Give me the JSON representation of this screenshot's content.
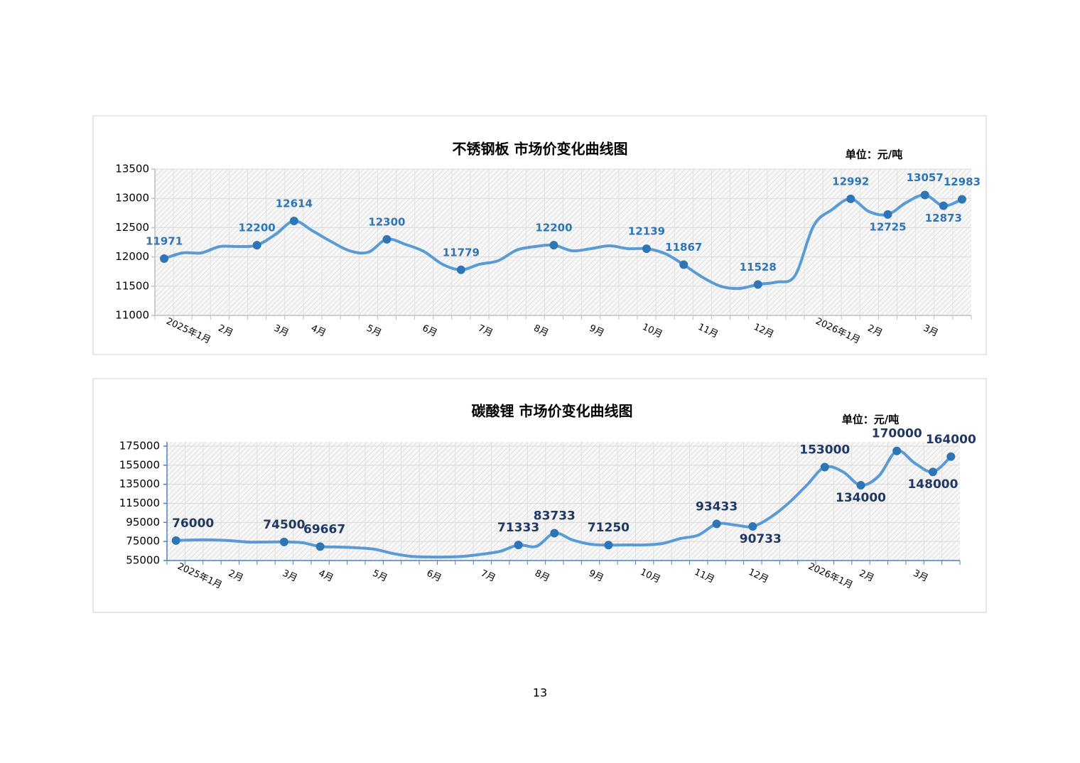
{
  "chart_data": [
    {
      "type": "line",
      "title": "不锈钢板 市场价变化曲线图",
      "unit": "单位：元/吨",
      "categories": [
        null,
        "2025年1月",
        null,
        "2月",
        null,
        null,
        "3月",
        null,
        "4月",
        null,
        null,
        "5月",
        null,
        null,
        "6月",
        null,
        null,
        "7月",
        null,
        null,
        "8月",
        null,
        null,
        "9月",
        null,
        null,
        "10月",
        null,
        null,
        "11月",
        null,
        null,
        "12月",
        null,
        null,
        null,
        "2026年1月",
        null,
        "2月",
        null,
        null,
        "3月",
        null,
        null
      ],
      "series": [
        {
          "color": "#5b9bd5",
          "marker_color": "#2e75b6",
          "values": [
            11971,
            12068,
            12068,
            12177,
            12177,
            12200,
            12384,
            12614,
            12444,
            12262,
            12104,
            12080,
            12300,
            12214,
            12092,
            11874,
            11779,
            11874,
            11934,
            12117,
            12177,
            12200,
            12104,
            12141,
            12189,
            12141,
            12139,
            12056,
            11867,
            11655,
            11498,
            11461,
            11528,
            11570,
            11680,
            12529,
            12808,
            12992,
            12772,
            12725,
            12930,
            13057,
            12873,
            12983
          ],
          "value_labels": [
            "11971",
            null,
            null,
            null,
            null,
            "12200",
            null,
            "12614",
            null,
            null,
            null,
            null,
            "12300",
            null,
            null,
            null,
            "11779",
            null,
            null,
            null,
            null,
            "12200",
            null,
            null,
            null,
            null,
            "12139",
            null,
            "11867",
            null,
            null,
            null,
            "11528",
            null,
            null,
            null,
            null,
            "12992",
            null,
            "12725",
            null,
            "13057",
            "12873",
            "12983"
          ]
        }
      ],
      "ylim": [
        11000,
        13500
      ],
      "yticks": [
        11000,
        11500,
        12000,
        12500,
        13000,
        13500
      ],
      "grid": true
    },
    {
      "type": "line",
      "title": "碳酸锂 市场价变化曲线图",
      "unit": "单位：元/吨",
      "categories": [
        null,
        "2025年1月",
        null,
        "2月",
        null,
        null,
        "3月",
        null,
        "4月",
        null,
        null,
        "5月",
        null,
        null,
        "6月",
        null,
        null,
        "7月",
        null,
        null,
        "8月",
        null,
        null,
        "9月",
        null,
        null,
        "10月",
        null,
        null,
        "11月",
        null,
        null,
        "12月",
        null,
        null,
        null,
        "2026年1月",
        null,
        "2月",
        null,
        null,
        "3月",
        null,
        null
      ],
      "series": [
        {
          "color": "#5b9bd5",
          "marker_color": "#2e75b6",
          "values": [
            76000,
            76620,
            76620,
            75900,
            74400,
            74400,
            74500,
            73700,
            69667,
            69200,
            68400,
            66900,
            62500,
            59500,
            58700,
            58700,
            59500,
            61700,
            64700,
            71333,
            69900,
            83733,
            76600,
            72100,
            71250,
            71400,
            71400,
            72900,
            78100,
            81800,
            93433,
            92300,
            90733,
            100500,
            115400,
            134000,
            153000,
            148200,
            134000,
            143700,
            170000,
            157100,
            148000,
            164000
          ],
          "value_labels": [
            "76000",
            null,
            null,
            null,
            null,
            null,
            "74500",
            null,
            "69667",
            null,
            null,
            null,
            null,
            null,
            null,
            null,
            null,
            null,
            null,
            "71333",
            null,
            "83733",
            null,
            null,
            "71250",
            null,
            null,
            null,
            null,
            null,
            "93433",
            null,
            "90733",
            null,
            null,
            null,
            "153000",
            null,
            "134000",
            null,
            "170000",
            null,
            "148000",
            "164000"
          ]
        }
      ],
      "ylim": [
        55000,
        175000
      ],
      "yticks": [
        55000,
        75000,
        95000,
        115000,
        135000,
        155000,
        175000
      ],
      "grid": true
    }
  ],
  "page_number": "13"
}
